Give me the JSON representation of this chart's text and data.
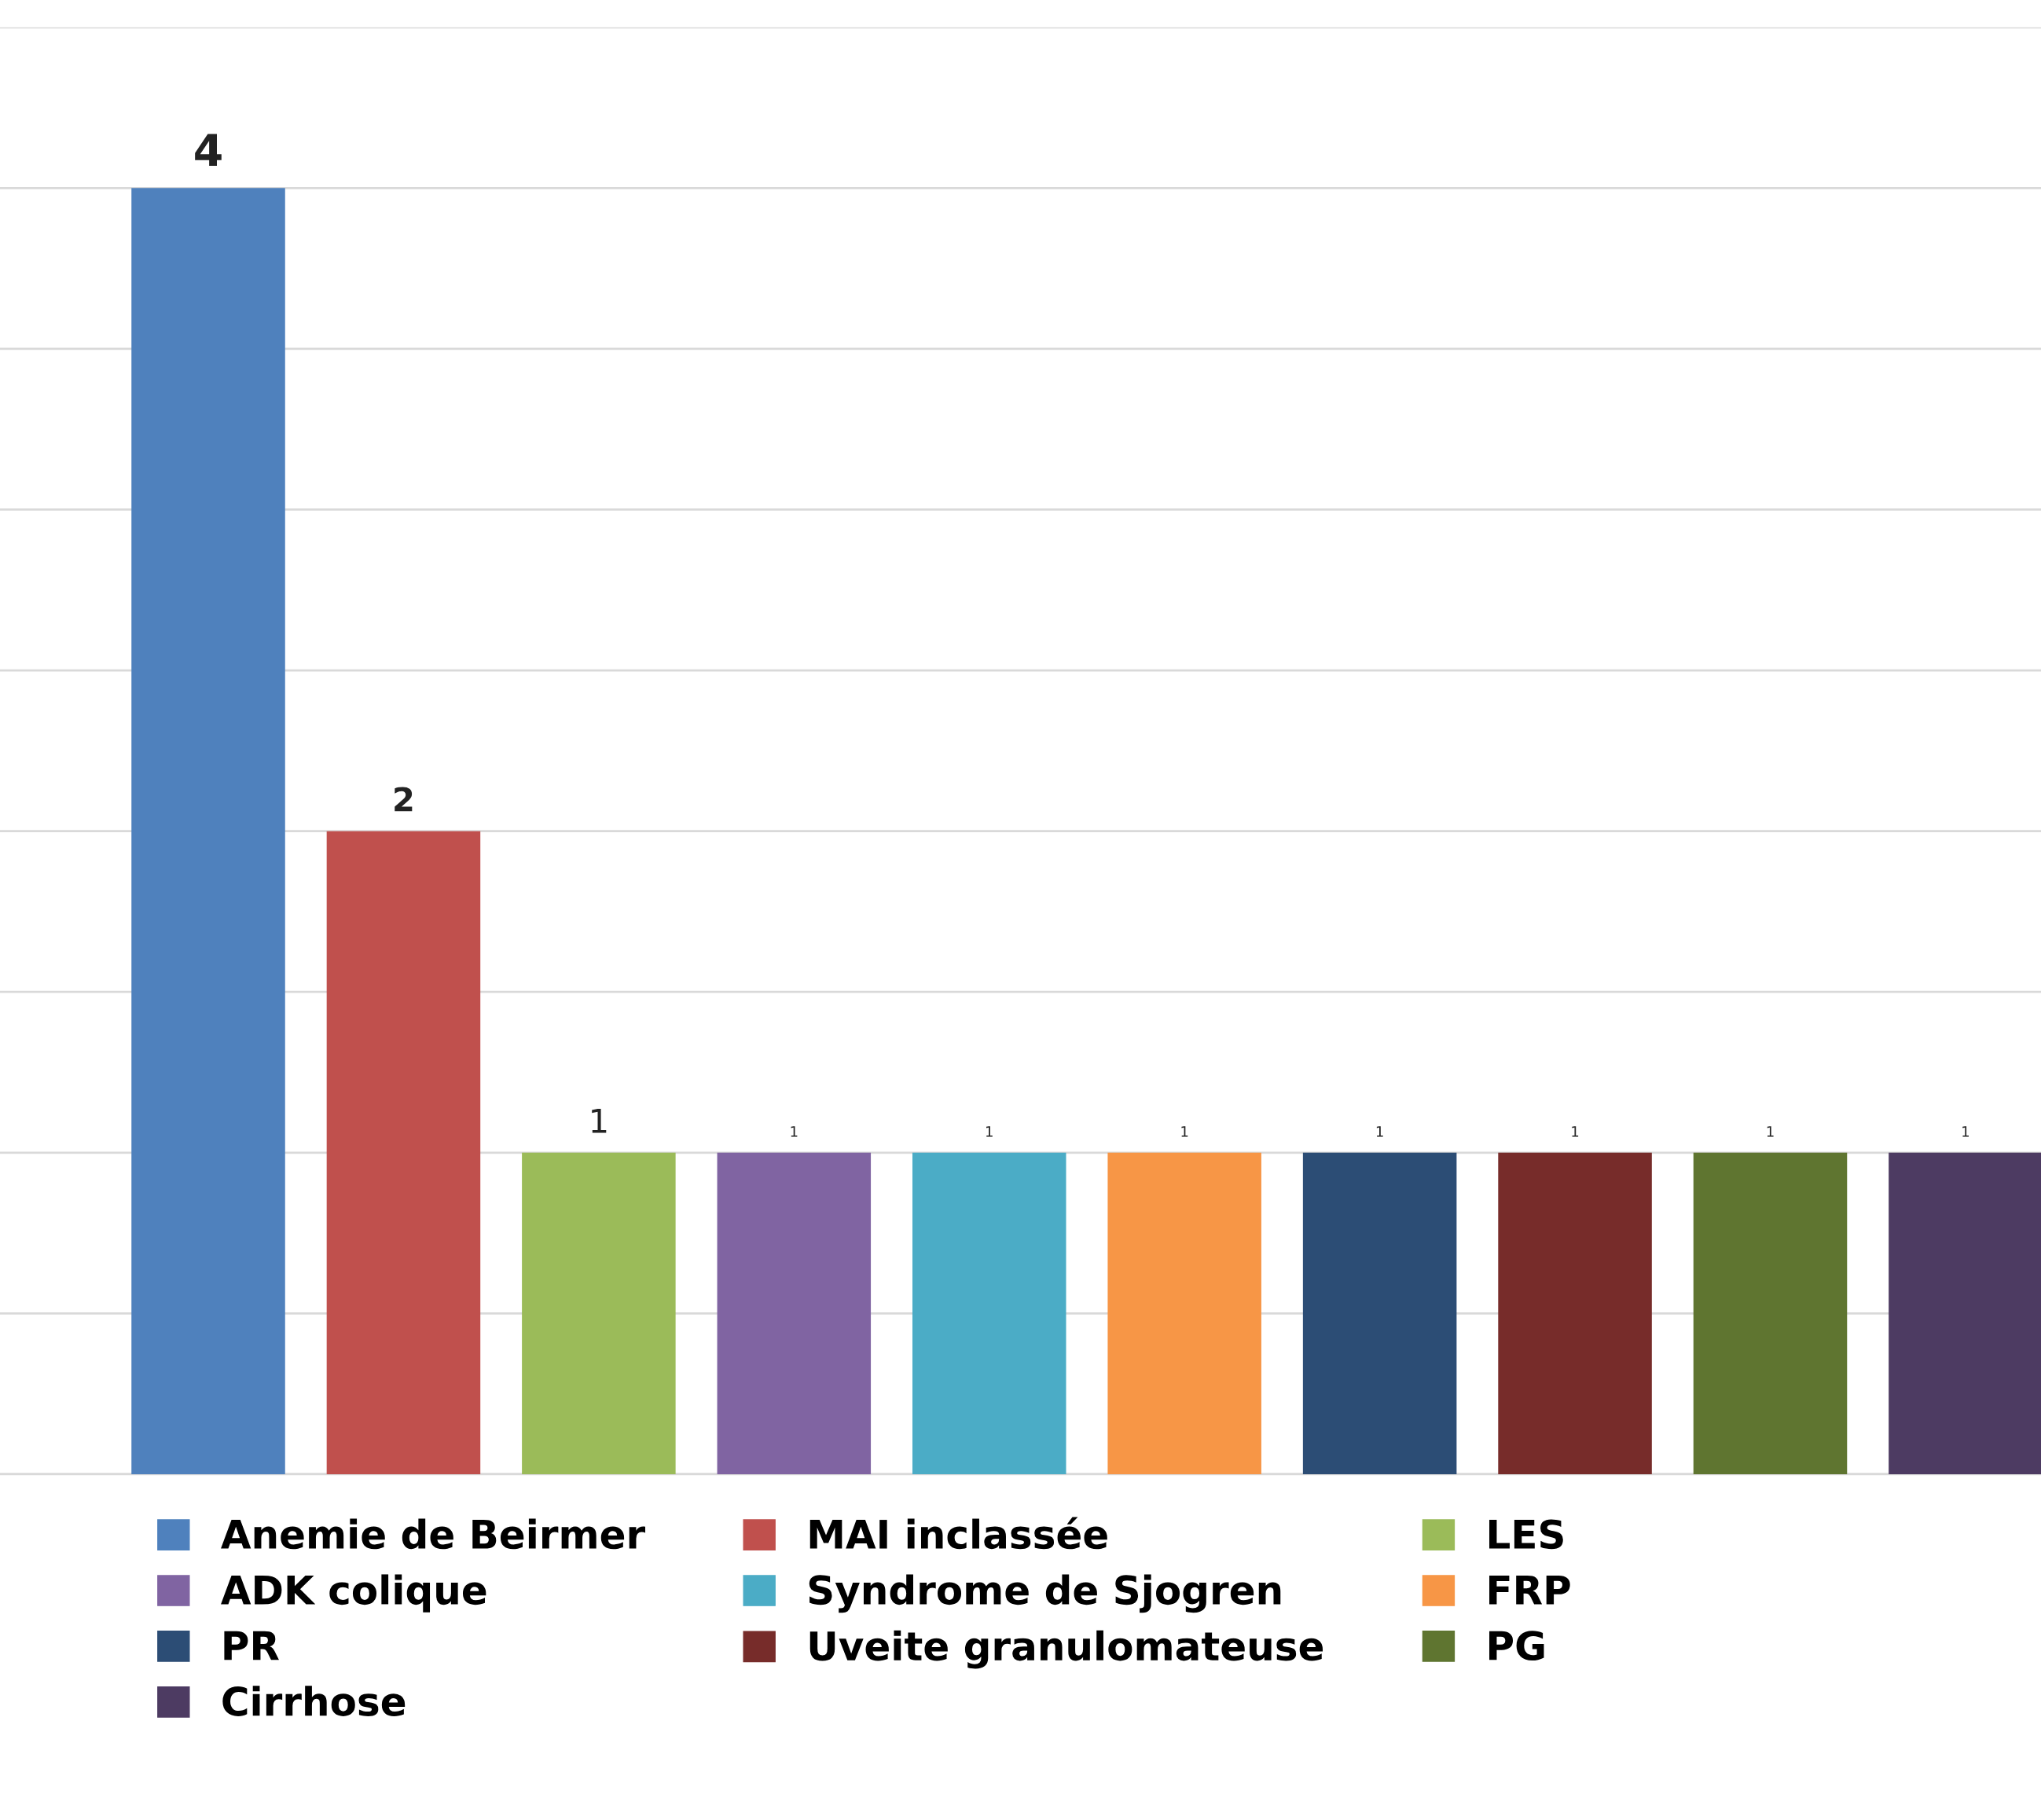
{
  "chart_data": {
    "type": "bar",
    "stacked": true,
    "categories": [
      null,
      null,
      null,
      null,
      null,
      null,
      null,
      null,
      null,
      null
    ],
    "series": [
      {
        "name": "Anemie de Beirmer",
        "color": "#4f81bd",
        "values": [
          4,
          null,
          null,
          null,
          null,
          null,
          null,
          null,
          null,
          null
        ]
      },
      {
        "name": "MAI inclassée",
        "color": "#c0504d",
        "values": [
          null,
          2,
          null,
          null,
          null,
          null,
          null,
          null,
          null,
          null
        ]
      },
      {
        "name": "LES",
        "color": "#9bbb59",
        "values": [
          null,
          null,
          1,
          null,
          null,
          null,
          null,
          null,
          null,
          null
        ]
      },
      {
        "name": "ADK colique",
        "color": "#8064a2",
        "values": [
          null,
          null,
          null,
          1,
          null,
          null,
          null,
          null,
          null,
          null
        ]
      },
      {
        "name": "Syndrome de Sjogren",
        "color": "#4bacc6",
        "values": [
          null,
          null,
          null,
          null,
          1,
          null,
          null,
          null,
          null,
          null
        ]
      },
      {
        "name": "FRP",
        "color": "#f79646",
        "values": [
          null,
          null,
          null,
          null,
          null,
          1,
          null,
          null,
          null,
          null
        ]
      },
      {
        "name": "PR",
        "color": "#2c4d75",
        "values": [
          null,
          null,
          null,
          null,
          null,
          null,
          1,
          null,
          null,
          null
        ]
      },
      {
        "name": "Uveite granulomateuse",
        "color": "#772c2a",
        "values": [
          null,
          null,
          null,
          null,
          null,
          null,
          null,
          1,
          null,
          null
        ]
      },
      {
        "name": "PG",
        "color": "#5f7530",
        "values": [
          null,
          null,
          null,
          null,
          null,
          null,
          null,
          null,
          1,
          null
        ]
      },
      {
        "name": "Cirrhose",
        "color": "#4d3b62",
        "values": [
          null,
          null,
          null,
          null,
          null,
          null,
          null,
          null,
          null,
          1
        ]
      }
    ],
    "ylim": [
      0,
      4.5
    ],
    "yticks": [
      {
        "value": 0,
        "label": null
      },
      {
        "value": 0.5,
        "label": null
      },
      {
        "value": 1,
        "label": null
      },
      {
        "value": 1.5,
        "label": null
      },
      {
        "value": 2,
        "label": null
      },
      {
        "value": 2.5,
        "label": null
      },
      {
        "value": 3,
        "label": null
      },
      {
        "value": 3.5,
        "label": null
      },
      {
        "value": 4,
        "label": null
      },
      {
        "value": 4.5,
        "label": null
      }
    ],
    "grid": "y",
    "legend": "bottom",
    "data_labels": true
  }
}
